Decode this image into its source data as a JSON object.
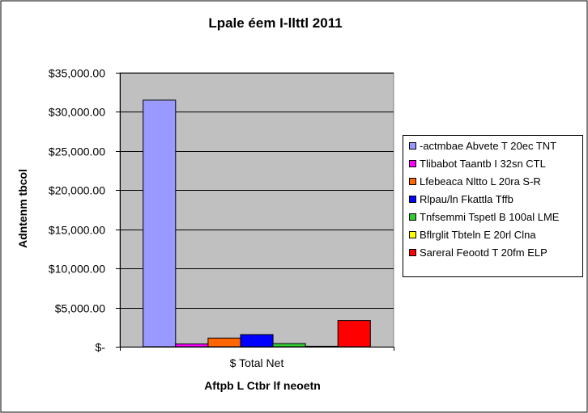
{
  "chart_data": {
    "type": "bar",
    "title": "Lpale éem I-llttl 2011",
    "xlabel": "Aftpb L Ctbr lf neoetn",
    "ylabel": "Adntenm tbcol",
    "categories": [
      "$ Total Net"
    ],
    "ylim": [
      0,
      35000
    ],
    "yticks": [
      0,
      5000,
      10000,
      15000,
      20000,
      25000,
      30000,
      35000
    ],
    "ytick_labels": [
      "$-",
      "$5,000.00",
      "$10,000.00",
      "$15,000.00",
      "$20,000.00",
      "$25,000.00",
      "$30,000.00",
      "$35,000.00"
    ],
    "grid": true,
    "legend_position": "right",
    "series": [
      {
        "name": "-actmbae Abvete T 20ec TNT",
        "values": [
          31500
        ],
        "color": "#9999ff"
      },
      {
        "name": "Tlibabot Taantb I 32sn CTL",
        "values": [
          350
        ],
        "color": "#ff00ff"
      },
      {
        "name": "Lfebeaca Nltto L 20ra S-R",
        "values": [
          1100
        ],
        "color": "#ff6600"
      },
      {
        "name": "Rlpau/ln Fkattla Tffb",
        "values": [
          1550
        ],
        "color": "#0000ff"
      },
      {
        "name": "Tnfsemmi Tspetl B 100al LME",
        "values": [
          400
        ],
        "color": "#33cc33"
      },
      {
        "name": "Bflrglit Tbteln E 20rl  Clna",
        "values": [
          60
        ],
        "color": "#ffff00"
      },
      {
        "name": "Sareral Feootd T 20fm ELP",
        "values": [
          3350
        ],
        "color": "#ff0000"
      }
    ]
  },
  "colors": {
    "title": "#ff0000",
    "plot_background": "#c0c0c0",
    "frame": "#000000"
  }
}
